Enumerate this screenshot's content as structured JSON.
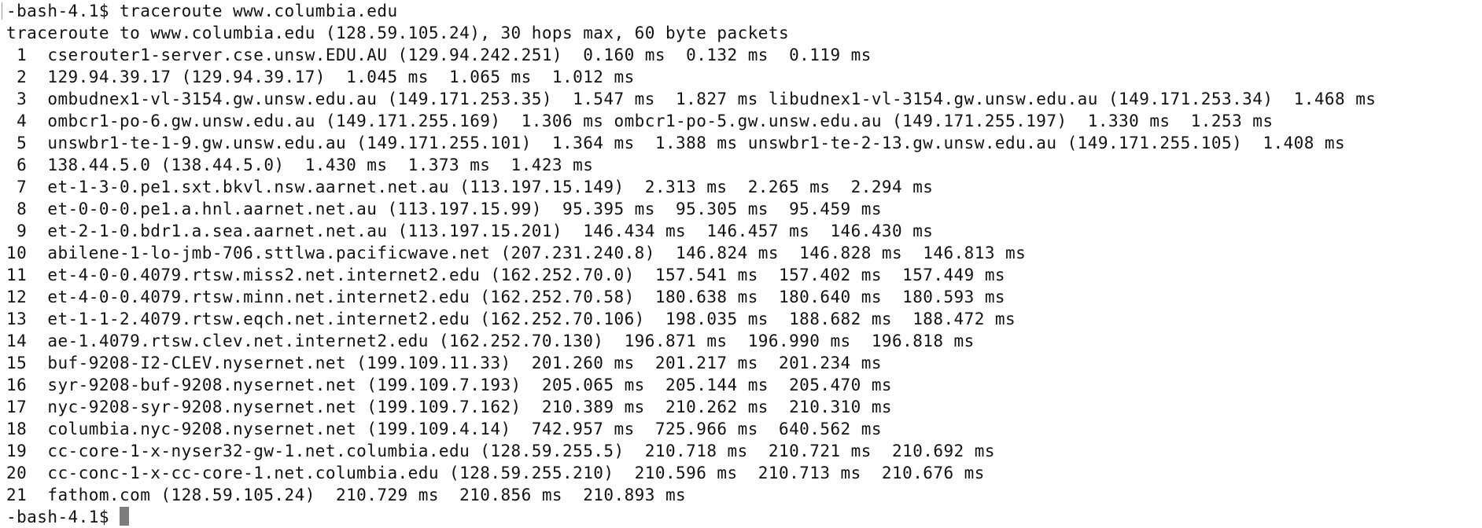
{
  "terminal": {
    "prompt": "-bash-4.1$ ",
    "command": "traceroute www.columbia.edu",
    "header": "traceroute to www.columbia.edu (128.59.105.24), 30 hops max, 60 byte packets",
    "hops": [
      " 1  cserouter1-server.cse.unsw.EDU.AU (129.94.242.251)  0.160 ms  0.132 ms  0.119 ms",
      " 2  129.94.39.17 (129.94.39.17)  1.045 ms  1.065 ms  1.012 ms",
      " 3  ombudnex1-vl-3154.gw.unsw.edu.au (149.171.253.35)  1.547 ms  1.827 ms libudnex1-vl-3154.gw.unsw.edu.au (149.171.253.34)  1.468 ms",
      " 4  ombcr1-po-6.gw.unsw.edu.au (149.171.255.169)  1.306 ms ombcr1-po-5.gw.unsw.edu.au (149.171.255.197)  1.330 ms  1.253 ms",
      " 5  unswbr1-te-1-9.gw.unsw.edu.au (149.171.255.101)  1.364 ms  1.388 ms unswbr1-te-2-13.gw.unsw.edu.au (149.171.255.105)  1.408 ms",
      " 6  138.44.5.0 (138.44.5.0)  1.430 ms  1.373 ms  1.423 ms",
      " 7  et-1-3-0.pe1.sxt.bkvl.nsw.aarnet.net.au (113.197.15.149)  2.313 ms  2.265 ms  2.294 ms",
      " 8  et-0-0-0.pe1.a.hnl.aarnet.net.au (113.197.15.99)  95.395 ms  95.305 ms  95.459 ms",
      " 9  et-2-1-0.bdr1.a.sea.aarnet.net.au (113.197.15.201)  146.434 ms  146.457 ms  146.430 ms",
      "10  abilene-1-lo-jmb-706.sttlwa.pacificwave.net (207.231.240.8)  146.824 ms  146.828 ms  146.813 ms",
      "11  et-4-0-0.4079.rtsw.miss2.net.internet2.edu (162.252.70.0)  157.541 ms  157.402 ms  157.449 ms",
      "12  et-4-0-0.4079.rtsw.minn.net.internet2.edu (162.252.70.58)  180.638 ms  180.640 ms  180.593 ms",
      "13  et-1-1-2.4079.rtsw.eqch.net.internet2.edu (162.252.70.106)  198.035 ms  188.682 ms  188.472 ms",
      "14  ae-1.4079.rtsw.clev.net.internet2.edu (162.252.70.130)  196.871 ms  196.990 ms  196.818 ms",
      "15  buf-9208-I2-CLEV.nysernet.net (199.109.11.33)  201.260 ms  201.217 ms  201.234 ms",
      "16  syr-9208-buf-9208.nysernet.net (199.109.7.193)  205.065 ms  205.144 ms  205.470 ms",
      "17  nyc-9208-syr-9208.nysernet.net (199.109.7.162)  210.389 ms  210.262 ms  210.310 ms",
      "18  columbia.nyc-9208.nysernet.net (199.109.4.14)  742.957 ms  725.966 ms  640.562 ms",
      "19  cc-core-1-x-nyser32-gw-1.net.columbia.edu (128.59.255.5)  210.718 ms  210.721 ms  210.692 ms",
      "20  cc-conc-1-x-cc-core-1.net.columbia.edu (128.59.255.210)  210.596 ms  210.713 ms  210.676 ms",
      "21  fathom.com (128.59.105.24)  210.729 ms  210.856 ms  210.893 ms"
    ],
    "final_prompt": "-bash-4.1$ "
  }
}
